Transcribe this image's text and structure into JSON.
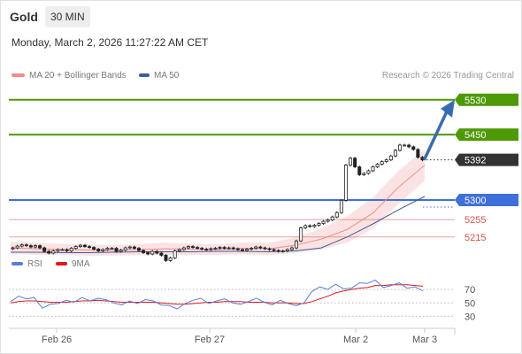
{
  "header": {
    "title": "Gold",
    "timeframe": "30 MIN",
    "datetime": "Monday, March 2, 2026 11:27:22 AM CET"
  },
  "legend": {
    "ma20_label": "MA 20 + Bollinger Bands",
    "ma50_label": "MA 50",
    "credit": "Research © 2026 Trading Central",
    "colors": {
      "ma20": "#f28b8b",
      "ma50": "#3a5d9c",
      "bands": "#fbdede"
    }
  },
  "rsi_legend": {
    "rsi_label": "RSI",
    "ma_label": "9MA",
    "colors": {
      "rsi": "#5b7fd6",
      "ma": "#e01818"
    }
  },
  "chart_data": [
    {
      "type": "candlestick",
      "title": "Gold",
      "x_ticks": [
        "Feb 26",
        "Feb 27",
        "Mar 2",
        "Mar 3"
      ],
      "ylim": [
        5180,
        5560
      ],
      "last_price": 5392,
      "levels": [
        {
          "value": 5530,
          "label": "5530",
          "kind": "resistance",
          "color": "#4e9a06"
        },
        {
          "value": 5450,
          "label": "5450",
          "kind": "resistance",
          "color": "#4e9a06"
        },
        {
          "value": 5392,
          "label": "5392",
          "kind": "last",
          "color": "#333333"
        },
        {
          "value": 5300,
          "label": "5300",
          "kind": "pivot",
          "color": "#3f6fd8"
        },
        {
          "value": 5255,
          "label": "5255",
          "kind": "support",
          "color": "#d9534f"
        },
        {
          "value": 5215,
          "label": "5215",
          "kind": "support",
          "color": "#d9534f"
        }
      ],
      "series": [
        {
          "name": "MA 20",
          "values": [
            5190,
            5188,
            5186,
            5185,
            5184,
            5186,
            5188,
            5187,
            5186,
            5189,
            5188,
            5196,
            5210,
            5232,
            5270,
            5330,
            5380
          ]
        },
        {
          "name": "MA 50",
          "values": [
            5180,
            5180,
            5179,
            5179,
            5180,
            5181,
            5181,
            5181,
            5182,
            5182,
            5181,
            5183,
            5190,
            5215,
            5245,
            5278,
            5308
          ]
        }
      ],
      "candles_close": [
        5190,
        5194,
        5197,
        5195,
        5192,
        5195,
        5190,
        5182,
        5178,
        5183,
        5186,
        5186,
        5183,
        5189,
        5193,
        5196,
        5193,
        5191,
        5187,
        5183,
        5186,
        5189,
        5189,
        5182,
        5185,
        5190,
        5192,
        5189,
        5184,
        5179,
        5176,
        5182,
        5178,
        5173,
        5161,
        5167,
        5183,
        5186,
        5190,
        5193,
        5191,
        5189,
        5187,
        5186,
        5188,
        5189,
        5191,
        5189,
        5190,
        5188,
        5186,
        5184,
        5187,
        5189,
        5192,
        5190,
        5188,
        5186,
        5184,
        5182,
        5183,
        5186,
        5190,
        5206,
        5236,
        5241,
        5239,
        5242,
        5246,
        5251,
        5254,
        5261,
        5271,
        5299,
        5380,
        5396,
        5376,
        5358,
        5361,
        5367,
        5376,
        5382,
        5388,
        5392,
        5401,
        5414,
        5426,
        5426,
        5422,
        5416,
        5398,
        5392
      ]
    },
    {
      "type": "line",
      "title": "RSI",
      "y_ticks": [
        30,
        50,
        70
      ],
      "ylim": [
        20,
        90
      ],
      "series": [
        {
          "name": "RSI",
          "values": [
            52,
            60,
            56,
            58,
            42,
            48,
            49,
            54,
            51,
            58,
            53,
            57,
            55,
            50,
            47,
            53,
            49,
            55,
            53,
            47,
            46,
            41,
            49,
            54,
            57,
            49,
            53,
            56,
            50,
            48,
            52,
            57,
            51,
            47,
            54,
            49,
            46,
            50,
            67,
            74,
            70,
            78,
            71,
            72,
            80,
            79,
            84,
            73,
            76,
            80,
            72,
            74,
            68
          ]
        },
        {
          "name": "9MA",
          "values": [
            50,
            52,
            53,
            53,
            52,
            51,
            51,
            51,
            52,
            53,
            53,
            54,
            53,
            52,
            51,
            51,
            51,
            51,
            51,
            50,
            49,
            48,
            48,
            49,
            50,
            51,
            51,
            52,
            52,
            52,
            51,
            51,
            51,
            50,
            50,
            50,
            49,
            49,
            52,
            56,
            60,
            65,
            68,
            70,
            72,
            73,
            76,
            76,
            77,
            77,
            77,
            76,
            75
          ]
        }
      ]
    }
  ]
}
